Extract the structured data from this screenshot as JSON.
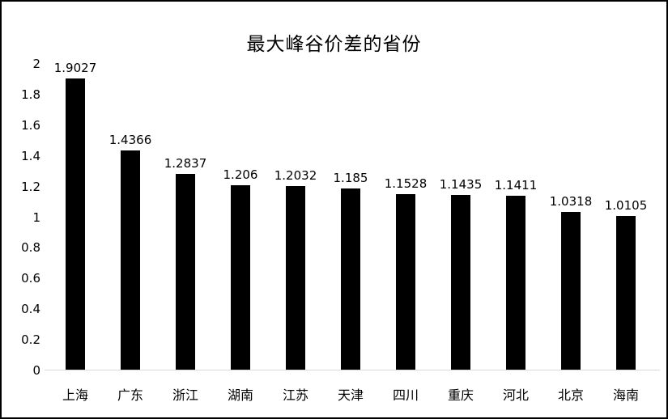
{
  "chart_data": {
    "type": "bar",
    "title": "最大峰谷价差的省份",
    "categories": [
      "上海",
      "广东",
      "浙江",
      "湖南",
      "江苏",
      "天津",
      "四川",
      "重庆",
      "河北",
      "北京",
      "海南"
    ],
    "values": [
      1.9027,
      1.4366,
      1.2837,
      1.206,
      1.2032,
      1.185,
      1.1528,
      1.1435,
      1.1411,
      1.0318,
      1.0105
    ],
    "value_labels": [
      "1.9027",
      "1.4366",
      "1.2837",
      "1.206",
      "1.2032",
      "1.185",
      "1.1528",
      "1.1435",
      "1.1411",
      "1.0318",
      "1.0105"
    ],
    "ytick_labels": [
      "2",
      "1.8",
      "1.6",
      "1.4",
      "1.2",
      "1",
      "0.8",
      "0.6",
      "0.4",
      "0.2",
      "0"
    ],
    "ylim": [
      0,
      2
    ],
    "xlabel": "",
    "ylabel": "",
    "grid": false,
    "legend": false,
    "colors": {
      "bar": "#000000",
      "axis_line": "#d9d9d9",
      "text": "#000000",
      "frame_border": "#000000",
      "background": "#ffffff"
    }
  }
}
